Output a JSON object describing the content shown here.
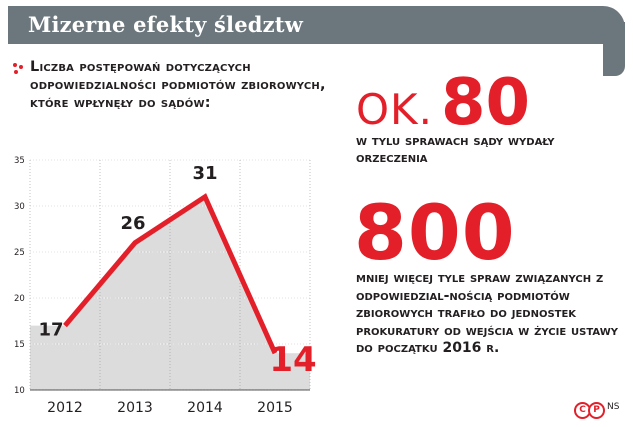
{
  "header": {
    "title": "Mizerne efekty śledztw"
  },
  "chart_title": "Liczba postępowań dotyczących odpowiedzialności podmiotów zbiorowych, które wpłynęły do sądów:",
  "stat1": {
    "prefix": "OK.",
    "value": "80",
    "text": "w tylu sprawach sądy wydały orzeczenia"
  },
  "stat2": {
    "value": "800",
    "text": "mniej więcej tyle spraw związanych z odpowiedzial-nością podmiotów zbiorowych trafiło do jednostek prokuratury od wejścia w życie ustawy do początku 2016 r."
  },
  "credit": {
    "left": "C",
    "right": "P",
    "agency": "NS"
  },
  "colors": {
    "accent": "#e3202a",
    "header_bg": "#6c777d",
    "area": "#dcdcdc",
    "text": "#231f20"
  },
  "chart_data": {
    "type": "line",
    "categories": [
      "2012",
      "2013",
      "2014",
      "2015"
    ],
    "series": [
      {
        "values": [
          17,
          26,
          31,
          14
        ]
      }
    ],
    "data_labels": [
      "17",
      "26",
      "31",
      "14"
    ],
    "ylim": [
      10,
      35
    ],
    "yticks": [
      "10",
      "15",
      "20",
      "25",
      "30",
      "35"
    ],
    "grid": true,
    "title": "",
    "xlabel": "",
    "ylabel": ""
  }
}
